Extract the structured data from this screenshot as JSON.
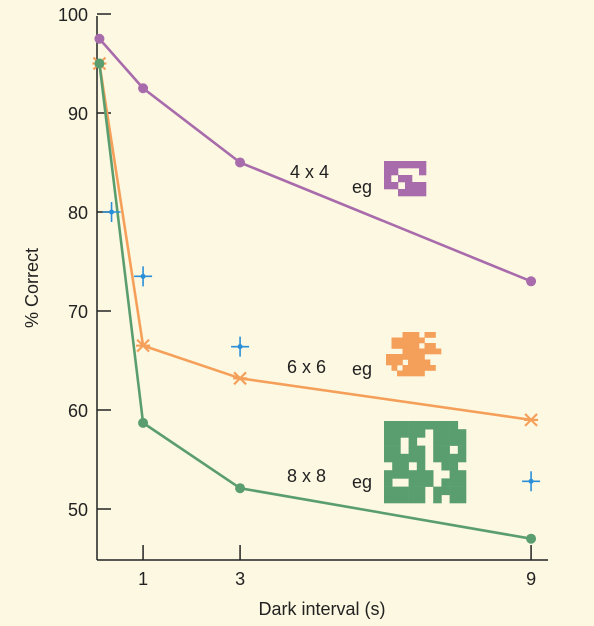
{
  "chart_data": {
    "type": "line",
    "xlabel": "Dark interval (s)",
    "ylabel": "% Correct",
    "ylim": [
      45,
      100
    ],
    "x_ticks": [
      1,
      3,
      9
    ],
    "y_ticks": [
      50,
      60,
      70,
      80,
      90,
      100
    ],
    "grid": false,
    "series": [
      {
        "name": "4 x 4",
        "color": "#a86bab",
        "marker": "circle",
        "x": [
          0.1,
          1,
          3,
          9
        ],
        "y": [
          97.5,
          92.5,
          85,
          73
        ],
        "label": {
          "name": "4 x 4",
          "eg": "eg"
        },
        "pattern": [
          "######",
          "##...#",
          "#.##..",
          "##.###",
          "..####"
        ]
      },
      {
        "name": "6 x 6",
        "color": "#f5a05a",
        "marker": "star",
        "x": [
          0.1,
          1,
          3,
          9
        ],
        "y": [
          95,
          66.5,
          63.2,
          59
        ],
        "label": {
          "name": "6 x 6",
          "eg": "eg"
        },
        "pattern": [
          "...###.##",
          ".######..",
          ".#####.##",
          "...#######",
          "#######...",
          "###.####..",
          ".#.######.",
          "..#####..."
        ]
      },
      {
        "name": "8 x 8",
        "color": "#5a9e6f",
        "marker": "circle",
        "x": [
          0.1,
          1,
          3,
          9
        ],
        "y": [
          95,
          58.7,
          52.1,
          47
        ],
        "label": {
          "name": "8 x 8",
          "eg": "eg"
        },
        "pattern": [
          "#########.",
          "#####.####",
          "##.#..####",
          "##.##.##.#",
          "#####.####",
          ".##.#..##.",
          "######..##",
          "#..###.###",
          "#####.####",
          "#####.#.##"
        ]
      }
    ],
    "extra_points": {
      "color": "#2a8fd8",
      "marker": "cross",
      "x": [
        0.35,
        1,
        3,
        9
      ],
      "y": [
        80,
        73.5,
        66.4,
        52.8
      ]
    }
  }
}
